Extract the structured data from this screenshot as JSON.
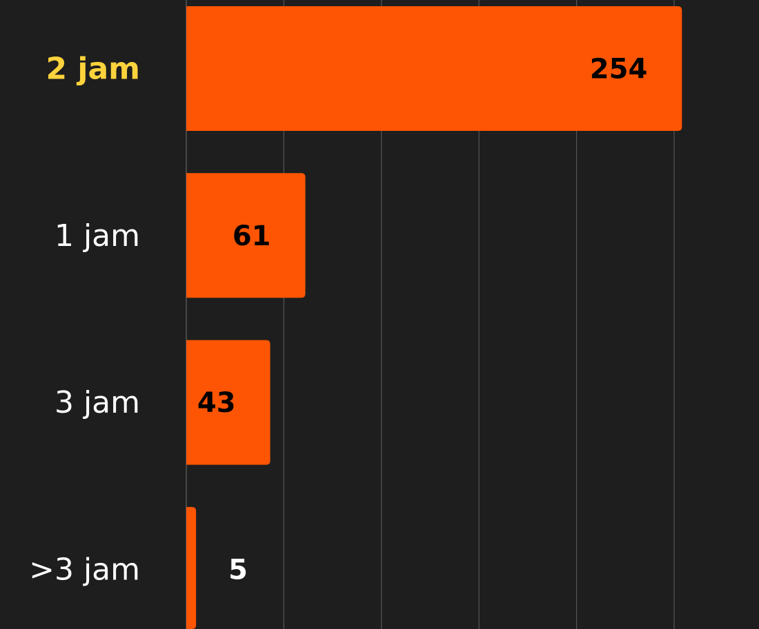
{
  "chart_data": {
    "type": "bar",
    "orientation": "horizontal",
    "categories": [
      "2 jam",
      "1 jam",
      "3 jam",
      ">3 jam"
    ],
    "values": [
      254,
      61,
      43,
      5
    ],
    "highlighted_category": "2 jam",
    "xlim": [
      0,
      250
    ],
    "grid": true,
    "gridline_step": 50,
    "title": "",
    "xlabel": "",
    "ylabel": ""
  },
  "colors": {
    "background": "#1e1e1e",
    "bar": "#fd5504",
    "highlight_label": "#fcd33c",
    "label": "#ffffff",
    "value_inside": "#000000",
    "value_outside": "#ffffff",
    "gridline": "#555555"
  }
}
